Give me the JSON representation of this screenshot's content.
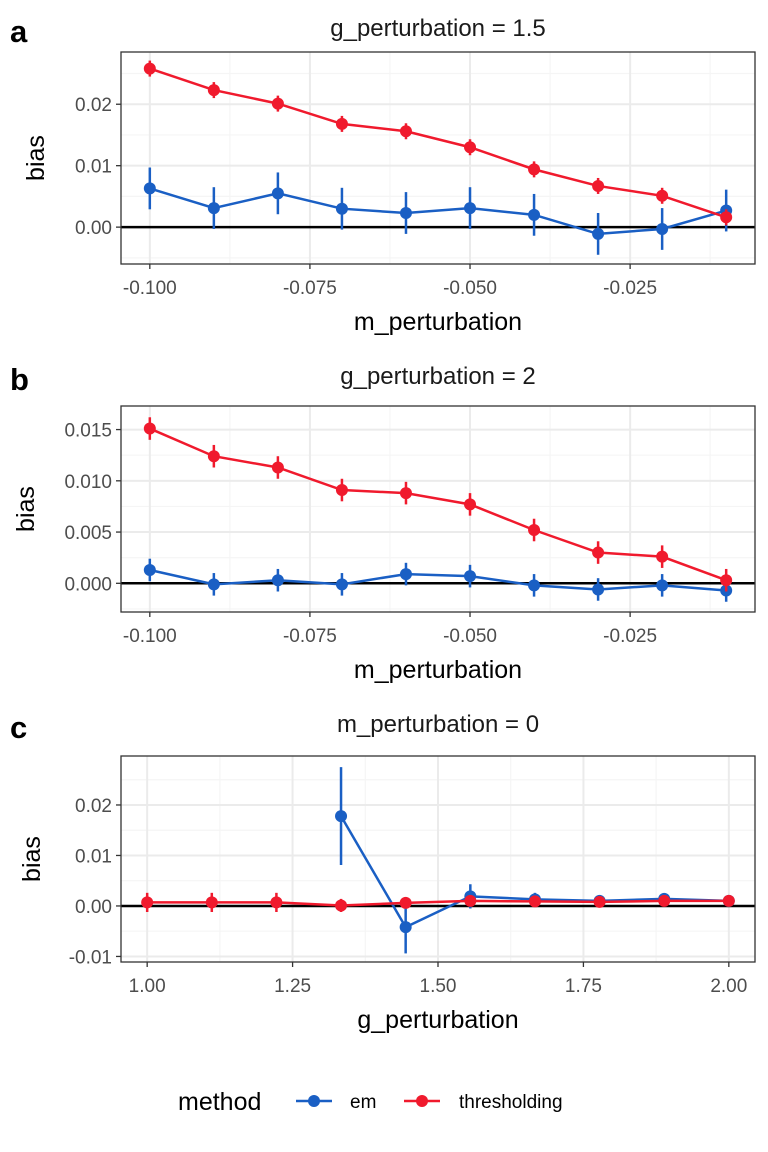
{
  "colors": {
    "em": "#1a5fc4",
    "thresholding": "#f01a2d",
    "grid_major": "#ebebeb",
    "grid_minor": "#f5f5f5",
    "zero_line": "#000000",
    "panel_border": "#333333"
  },
  "legend": {
    "title": "method",
    "items": [
      {
        "key": "em",
        "label": "em"
      },
      {
        "key": "thresholding",
        "label": "thresholding"
      }
    ]
  },
  "chart_data": [
    {
      "type": "line",
      "tag": "a",
      "title": "g_perturbation = 1.5",
      "xlabel": "m_perturbation",
      "ylabel": "bias",
      "xlim": [
        -0.1045,
        -0.0055
      ],
      "ylim": [
        -0.006,
        0.0285
      ],
      "xticks": [
        -0.1,
        -0.075,
        -0.05,
        -0.025
      ],
      "xtick_labels": [
        "-0.100",
        "-0.075",
        "-0.050",
        "-0.025"
      ],
      "yticks": [
        0,
        0.01,
        0.02
      ],
      "ytick_labels": [
        "0.00",
        "0.01",
        "0.02"
      ],
      "grid": true,
      "x": [
        -0.1,
        -0.09,
        -0.08,
        -0.07,
        -0.06,
        -0.05,
        -0.04,
        -0.03,
        -0.02,
        -0.01
      ],
      "series": [
        {
          "name": "em",
          "key": "em",
          "values": [
            0.0063,
            0.0031,
            0.0055,
            0.003,
            0.0023,
            0.0031,
            0.002,
            -0.0011,
            -0.0003,
            0.0027
          ],
          "err": [
            0.0034,
            0.0034,
            0.0034,
            0.0034,
            0.0034,
            0.0034,
            0.0034,
            0.0034,
            0.0034,
            0.0034
          ]
        },
        {
          "name": "thresholding",
          "key": "thresholding",
          "values": [
            0.0258,
            0.0223,
            0.0201,
            0.0168,
            0.0156,
            0.013,
            0.0094,
            0.0067,
            0.0051,
            0.0016
          ],
          "err": [
            0.0013,
            0.0013,
            0.0013,
            0.0013,
            0.0013,
            0.0013,
            0.0013,
            0.0013,
            0.0013,
            0.0013
          ]
        }
      ]
    },
    {
      "type": "line",
      "tag": "b",
      "title": "g_perturbation = 2",
      "xlabel": "m_perturbation",
      "ylabel": "bias",
      "xlim": [
        -0.1045,
        -0.0055
      ],
      "ylim": [
        -0.0028,
        0.0173
      ],
      "xticks": [
        -0.1,
        -0.075,
        -0.05,
        -0.025
      ],
      "xtick_labels": [
        "-0.100",
        "-0.075",
        "-0.050",
        "-0.025"
      ],
      "yticks": [
        0,
        0.005,
        0.01,
        0.015
      ],
      "ytick_labels": [
        "0.000",
        "0.005",
        "0.010",
        "0.015"
      ],
      "grid": true,
      "x": [
        -0.1,
        -0.09,
        -0.08,
        -0.07,
        -0.06,
        -0.05,
        -0.04,
        -0.03,
        -0.02,
        -0.01
      ],
      "series": [
        {
          "name": "em",
          "key": "em",
          "values": [
            0.0013,
            -0.0001,
            0.0003,
            -0.0001,
            0.0009,
            0.0007,
            -0.0002,
            -0.0006,
            -0.0002,
            -0.0007
          ],
          "err": [
            0.0011,
            0.0011,
            0.0011,
            0.0011,
            0.0011,
            0.0011,
            0.0011,
            0.0011,
            0.0011,
            0.0011
          ]
        },
        {
          "name": "thresholding",
          "key": "thresholding",
          "values": [
            0.0151,
            0.0124,
            0.0113,
            0.0091,
            0.0088,
            0.0077,
            0.0052,
            0.003,
            0.0026,
            0.0003
          ],
          "err": [
            0.0011,
            0.0011,
            0.0011,
            0.0011,
            0.0011,
            0.0011,
            0.0011,
            0.0011,
            0.0011,
            0.0011
          ]
        }
      ]
    },
    {
      "type": "line",
      "tag": "c",
      "title": "m_perturbation = 0",
      "xlabel": "g_perturbation",
      "ylabel": "bias",
      "xlim": [
        0.955,
        2.045
      ],
      "ylim": [
        -0.0111,
        0.0297
      ],
      "xticks": [
        1.0,
        1.25,
        1.5,
        1.75,
        2.0
      ],
      "xtick_labels": [
        "1.00",
        "1.25",
        "1.50",
        "1.75",
        "2.00"
      ],
      "yticks": [
        -0.01,
        0,
        0.01,
        0.02
      ],
      "ytick_labels": [
        "-0.01",
        "0.00",
        "0.01",
        "0.02"
      ],
      "grid": true,
      "x_em": [
        1.3333,
        1.4444,
        1.5556,
        1.6667,
        1.7778,
        1.8889,
        2.0
      ],
      "x_thr": [
        1.0,
        1.1111,
        1.2222,
        1.3333,
        1.4444,
        1.5556,
        1.6667,
        1.7778,
        1.8889,
        2.0
      ],
      "series": [
        {
          "name": "em",
          "key": "em",
          "xkey": "x_em",
          "values": [
            0.0178,
            -0.0042,
            0.0019,
            0.0013,
            0.001,
            0.0014,
            0.001
          ],
          "err": [
            0.0097,
            0.0052,
            0.0024,
            0.0013,
            0.0009,
            0.0008,
            0.0007
          ]
        },
        {
          "name": "thresholding",
          "key": "thresholding",
          "xkey": "x_thr",
          "values": [
            0.0007,
            0.0007,
            0.0007,
            0.0001,
            0.0006,
            0.001,
            0.0009,
            0.0008,
            0.001,
            0.001
          ],
          "err": [
            0.0019,
            0.0019,
            0.0019,
            0.0013,
            0.001,
            0.0008,
            0.0007,
            0.0006,
            0.0006,
            0.0006
          ]
        }
      ]
    }
  ]
}
